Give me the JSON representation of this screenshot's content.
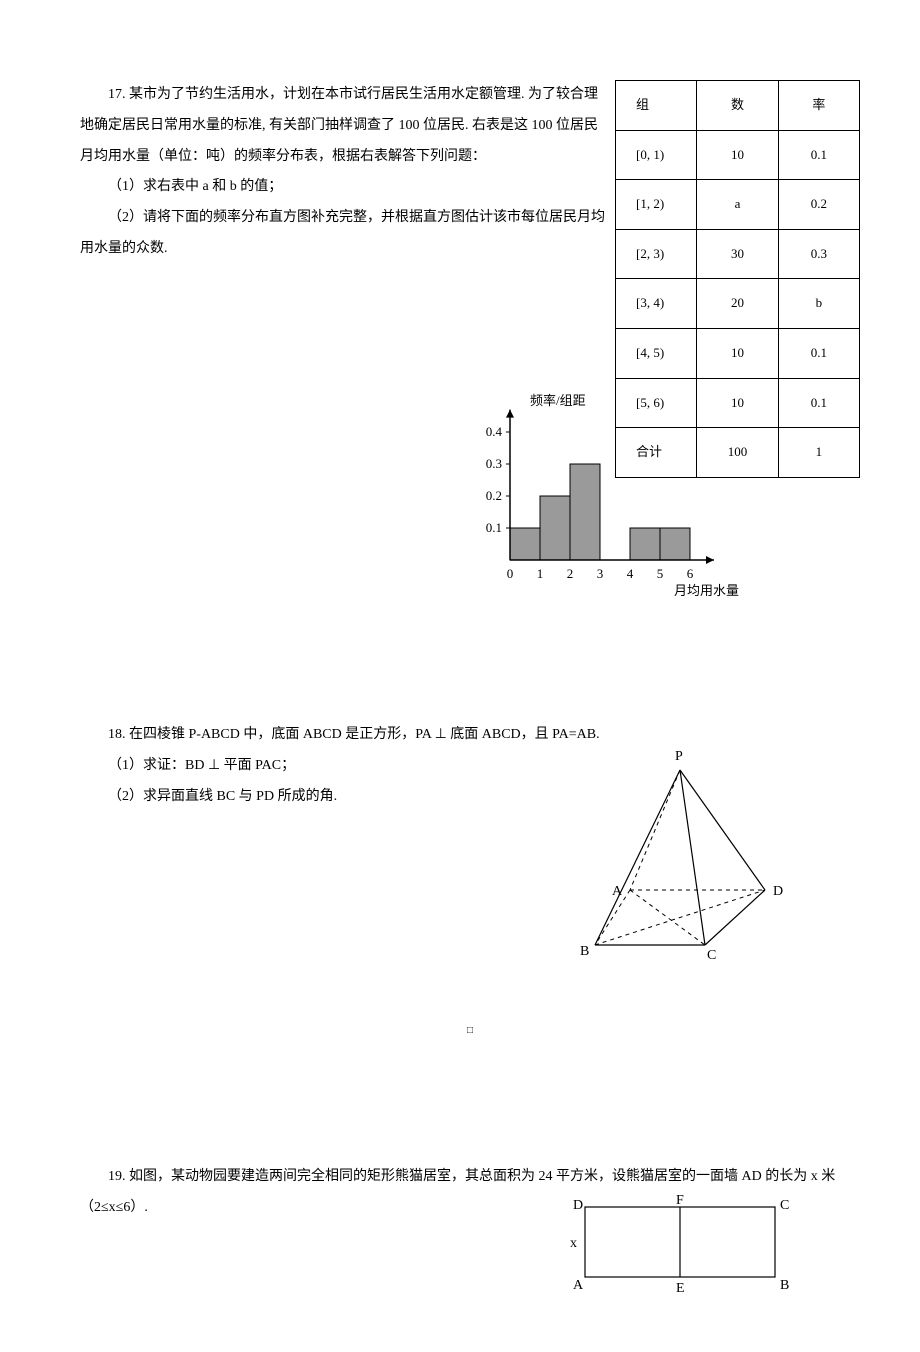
{
  "q17": {
    "intro": "17. 某市为了节约生活用水，计划在本市试行居民生活用水定额管理. 为了较合理地确定居民日常用水量的标准, 有关部门抽样调查了 100 位居民. 右表是这 100 位居民月均用水量（单位：吨）的频率分布表，根据右表解答下列问题：",
    "part1": "（1）求右表中 a 和 b 的值；",
    "part2": "（2）请将下面的频率分布直方图补充完整，并根据直方图估计该市每位居民月均用水量的众数."
  },
  "table": {
    "header": [
      "组",
      "数",
      "率"
    ],
    "rows": [
      [
        "[0, 1)",
        "10",
        "0.1"
      ],
      [
        "[1, 2)",
        "a",
        "0.2"
      ],
      [
        "[2, 3)",
        "30",
        "0.3"
      ],
      [
        "[3, 4)",
        "20",
        "b"
      ],
      [
        "[4, 5)",
        "10",
        "0.1"
      ],
      [
        "[5, 6)",
        "10",
        "0.1"
      ],
      [
        "合计",
        "100",
        "1"
      ]
    ]
  },
  "histogram": {
    "ylabel": "频率/组距",
    "xlabel": "月均用水量",
    "yTicks": [
      "0.1",
      "0.2",
      "0.3",
      "0.4"
    ],
    "xTicks": [
      "0",
      "1",
      "2",
      "3",
      "4",
      "5",
      "6"
    ],
    "bars": [
      {
        "x": 0,
        "h": 0.1
      },
      {
        "x": 1,
        "h": 0.2
      },
      {
        "x": 2,
        "h": 0.3
      },
      {
        "x": 4,
        "h": 0.1
      },
      {
        "x": 5,
        "h": 0.1
      }
    ],
    "barColor": "#9a9a9a",
    "barStroke": "#000"
  },
  "q18": {
    "intro": "18. 在四棱锥 P-ABCD 中，底面 ABCD 是正方形，PA ⊥ 底面 ABCD，且 PA=AB.",
    "part1": "（1）求证：BD ⊥ 平面 PAC；",
    "part2": "（2）求异面直线 BC 与 PD 所成的角.",
    "labels": {
      "P": "P",
      "A": "A",
      "B": "B",
      "C": "C",
      "D": "D"
    }
  },
  "q19": {
    "intro": "19. 如图，某动物园要建造两间完全相同的矩形熊猫居室，其总面积为 24 平方米，设熊猫居室的一面墙 AD 的长为 x 米（2≤x≤6）.",
    "labels": {
      "A": "A",
      "B": "B",
      "C": "C",
      "D": "D",
      "E": "E",
      "F": "F",
      "x": "x"
    }
  }
}
